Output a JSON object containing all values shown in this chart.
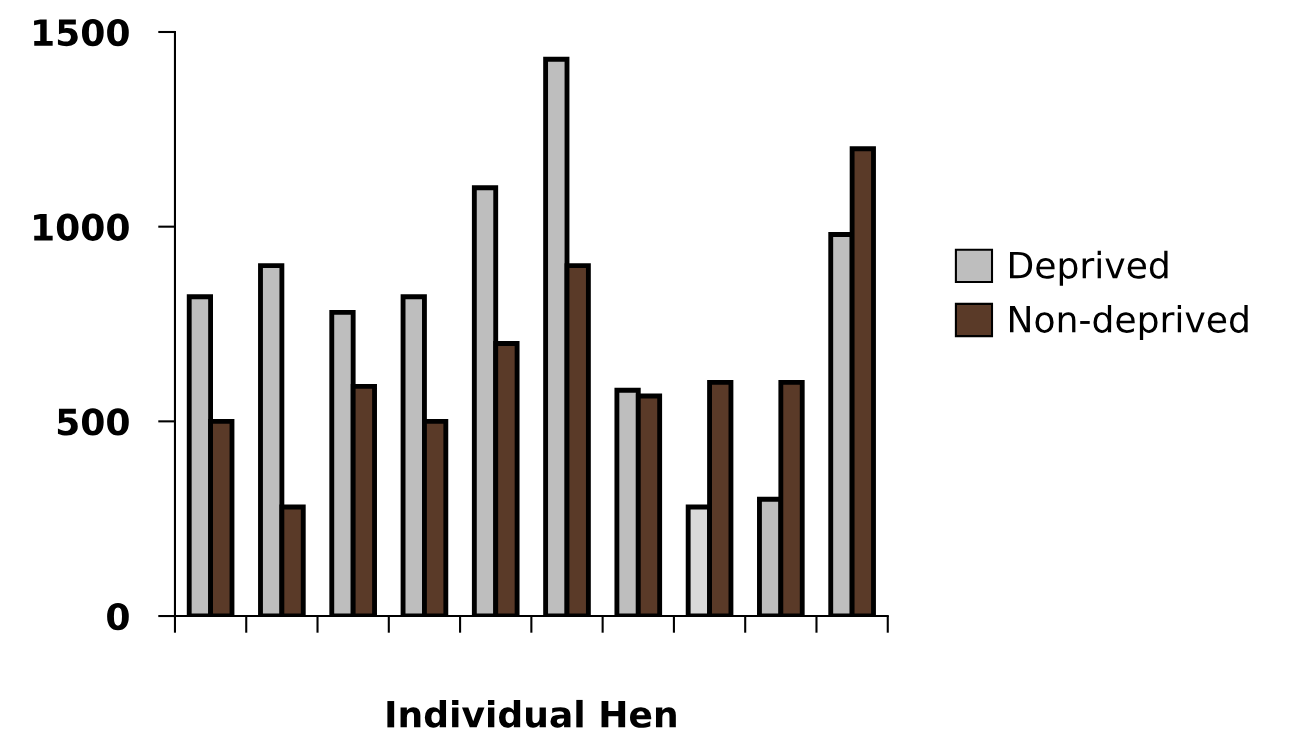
{
  "chart_data": {
    "type": "bar",
    "xlabel": "Individual Hen",
    "categories": [
      null,
      null,
      null,
      null,
      null,
      null,
      null,
      null,
      null,
      null
    ],
    "series": [
      {
        "name": "Deprived",
        "color": "#bebebe",
        "colors": [
          "#bebebe",
          "#bebebe",
          "#bebebe",
          "#bebebe",
          "#bebebe",
          "#bebebe",
          "#bebebe",
          "#d9d9d9",
          "#bebebe",
          "#bebebe"
        ],
        "values": [
          820,
          900,
          780,
          820,
          1100,
          1430,
          580,
          280,
          300,
          980
        ]
      },
      {
        "name": "Non-deprived",
        "color": "#5a3a28",
        "values": [
          500,
          280,
          590,
          500,
          700,
          900,
          565,
          600,
          600,
          1200
        ]
      }
    ],
    "ylim": [
      0,
      1500
    ],
    "yticks": [
      0,
      500,
      1000,
      1500
    ],
    "grid": false,
    "legend": "right"
  }
}
